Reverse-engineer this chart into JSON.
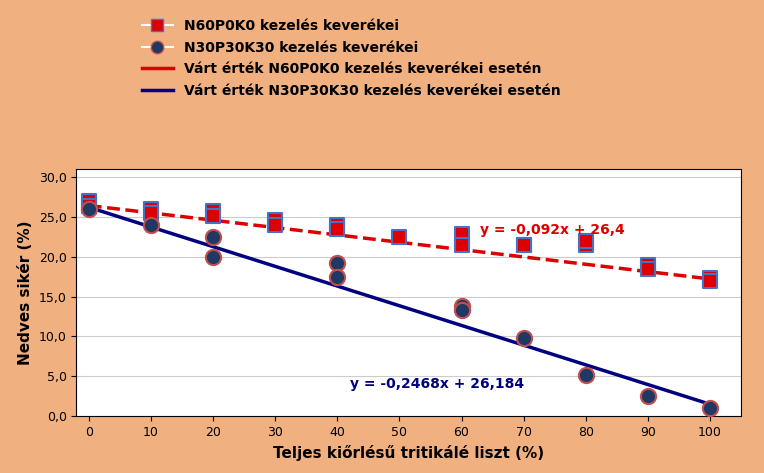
{
  "title": "",
  "xlabel": "Teljes kiőrlésű tritikálé liszt (%)",
  "ylabel": "Nedves sikér (%)",
  "background_color": "#f0b080",
  "plot_bg": "#ffffff",
  "xlim": [
    -2,
    105
  ],
  "ylim": [
    0,
    31
  ],
  "yticks": [
    0.0,
    5.0,
    10.0,
    15.0,
    20.0,
    25.0,
    30.0
  ],
  "xticks": [
    0,
    10,
    20,
    30,
    40,
    50,
    60,
    70,
    80,
    90,
    100
  ],
  "red_scatter_x": [
    0,
    0,
    10,
    10,
    20,
    20,
    30,
    30,
    40,
    40,
    50,
    60,
    60,
    70,
    70,
    80,
    80,
    90,
    90,
    100,
    100
  ],
  "red_scatter_y": [
    27.0,
    26.3,
    26.0,
    25.5,
    25.7,
    25.1,
    24.6,
    24.0,
    24.0,
    23.5,
    22.5,
    22.8,
    21.5,
    21.5,
    21.5,
    21.5,
    22.0,
    19.0,
    18.5,
    17.3,
    17.0
  ],
  "blue_scatter_x": [
    0,
    10,
    20,
    20,
    40,
    40,
    60,
    60,
    70,
    80,
    90,
    100
  ],
  "blue_scatter_y": [
    26.0,
    24.0,
    22.5,
    20.0,
    19.2,
    17.5,
    13.8,
    13.3,
    9.8,
    5.2,
    2.5,
    1.0
  ],
  "red_line_slope": -0.092,
  "red_line_intercept": 26.4,
  "blue_line_slope": -0.2468,
  "blue_line_intercept": 26.184,
  "red_eq": "y = -0,092x + 26,4",
  "blue_eq": "y = -0,2468x + 26,184",
  "legend_entries": [
    "N60P0K0 kezelés keverékei",
    "N30P30K30 kezelés keverékei",
    "Várt érték N60P0K0 kezelés keverékei esetén",
    "Várt érték N30P30K30 kezelés keverékei esetén"
  ],
  "red_color": "#dd0000",
  "blue_color": "#000080",
  "red_marker_facecolor": "#dd0000",
  "red_marker_edgecolor": "#4472c4",
  "blue_marker_facecolor": "#1f3864",
  "blue_marker_edgecolor": "#c0504d",
  "xlabel_fontsize": 11,
  "ylabel_fontsize": 11,
  "tick_fontsize": 9,
  "legend_fontsize": 10,
  "eq_red_fontsize": 10,
  "eq_blue_fontsize": 10
}
